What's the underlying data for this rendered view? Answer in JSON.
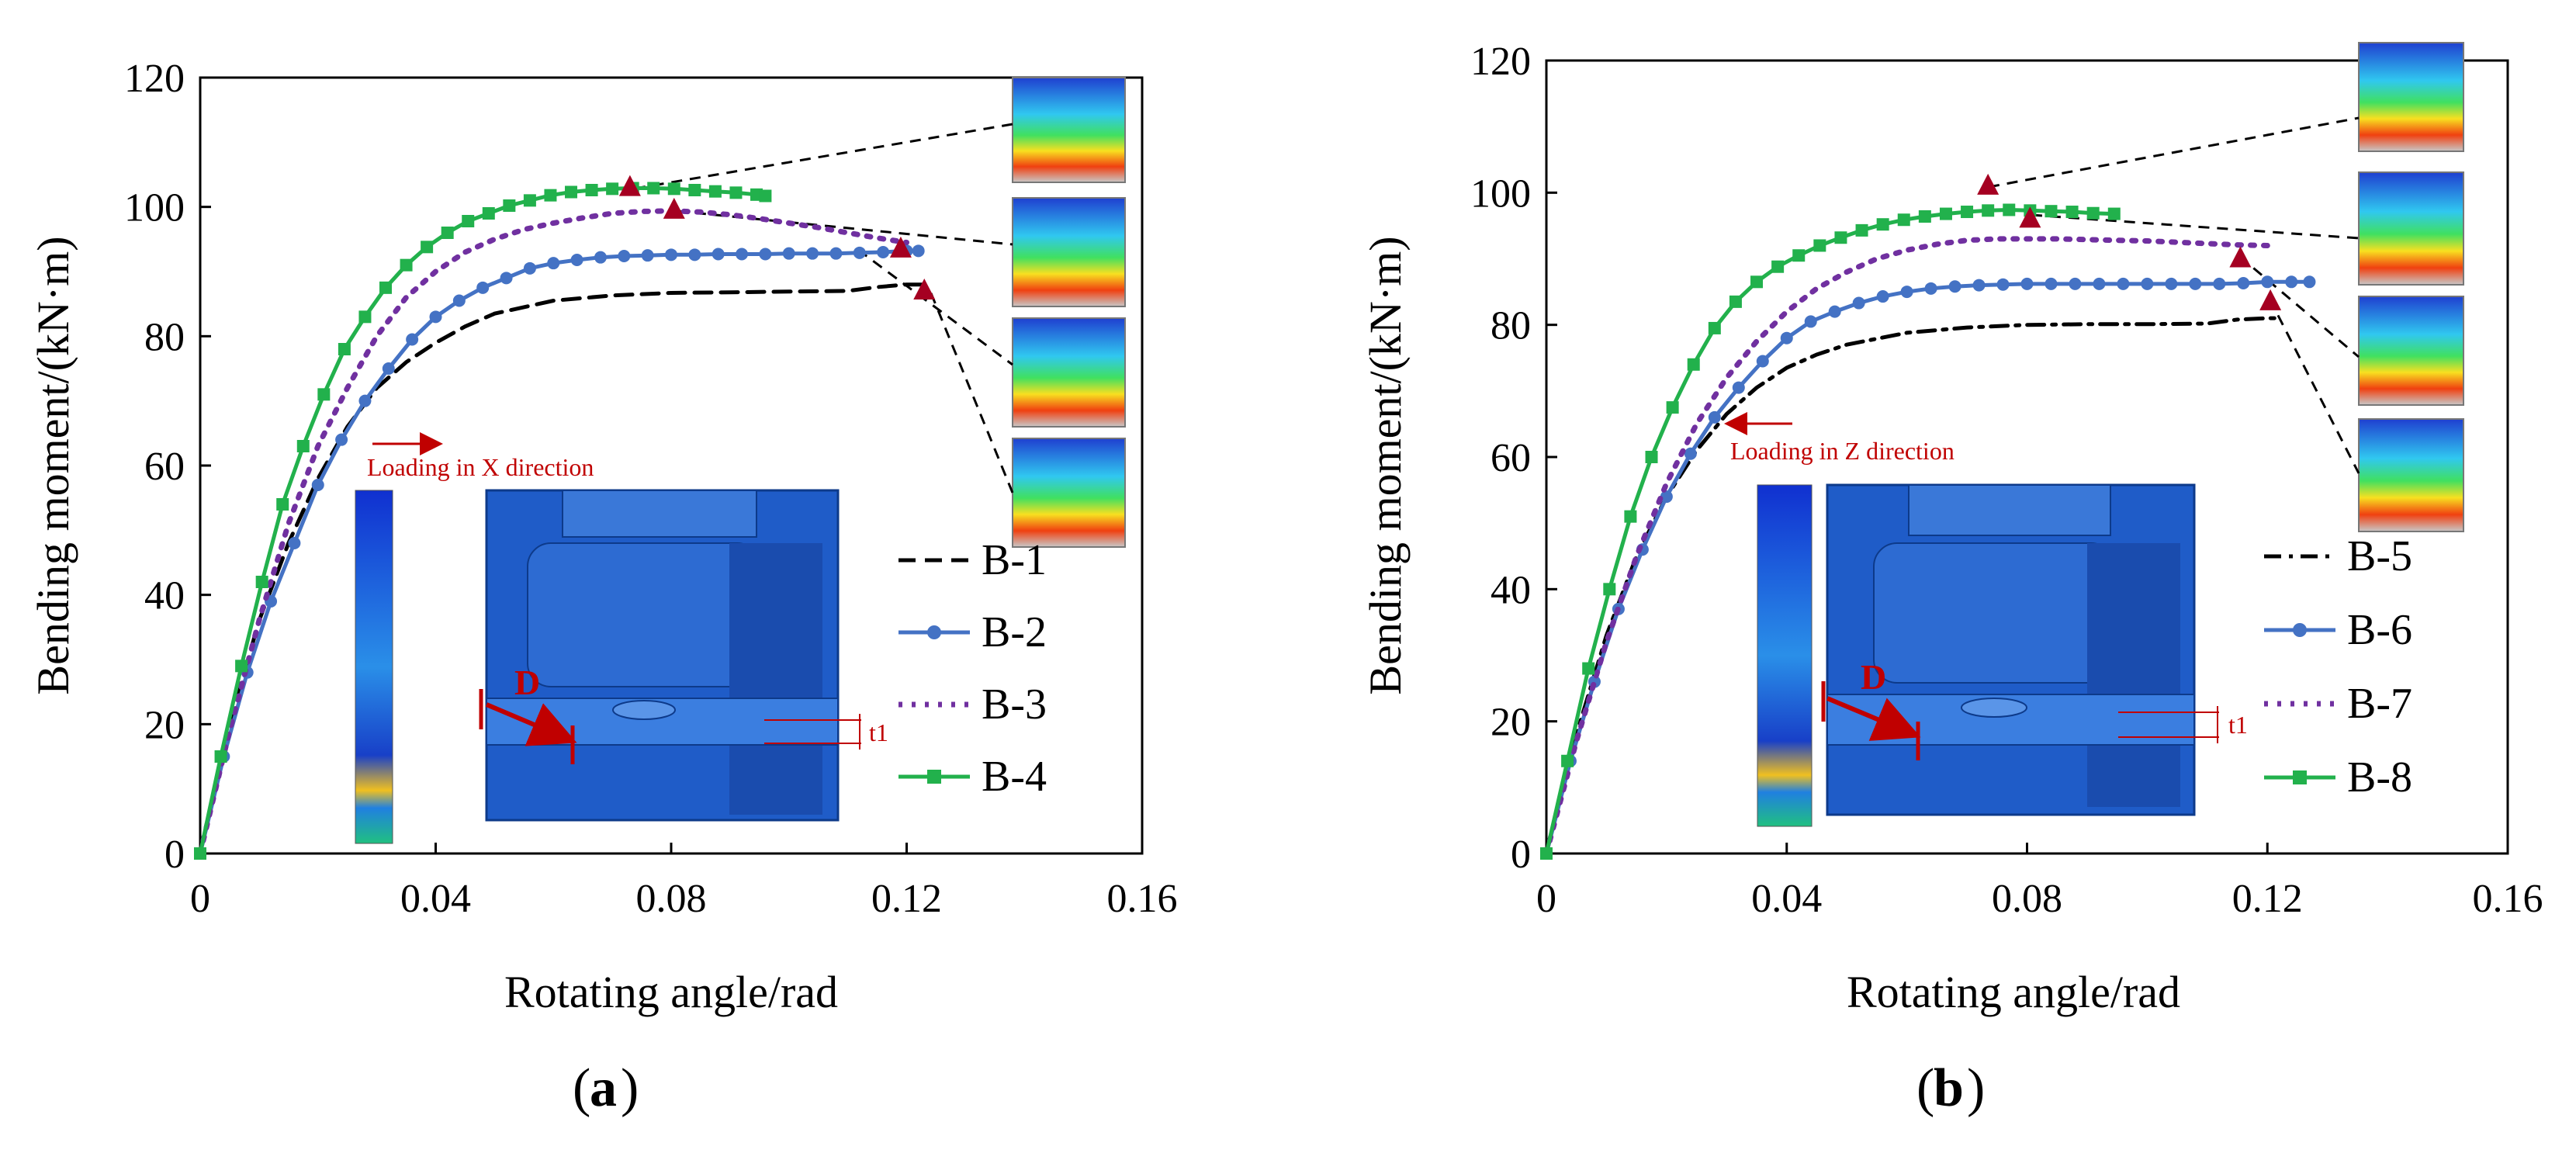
{
  "colors": {
    "axis": "#000000",
    "B-1": "#000000",
    "B-2": "#4472C4",
    "B-3": "#7030A0",
    "B-4": "#22B14C",
    "B-5": "#000000",
    "B-6": "#4472C4",
    "B-7": "#7030A0",
    "B-8": "#22B14C",
    "marker_red": "#A50021",
    "model_blue": "#1F5CC8",
    "annotation_red": "#C00000"
  },
  "chart_data": [
    {
      "id": "a",
      "type": "line",
      "panel_label": "a",
      "xlabel": "Rotating angle/rad",
      "ylabel": "Bending moment/(kN·m)",
      "xlim": [
        0,
        0.16
      ],
      "ylim": [
        0,
        120
      ],
      "xticks": [
        0,
        0.04,
        0.08,
        0.12,
        0.16
      ],
      "xtick_labels": [
        "0",
        "0.04",
        "0.08",
        "0.12",
        "0.16"
      ],
      "yticks": [
        0,
        20,
        40,
        60,
        80,
        100,
        120
      ],
      "ytick_labels": [
        "0",
        "20",
        "40",
        "60",
        "80",
        "100",
        "120"
      ],
      "annotation": "Loading in X direction",
      "dimension_labels": [
        "D",
        "t1"
      ],
      "legend_position": "bottom-right",
      "series": [
        {
          "name": "B-1",
          "style": "dash",
          "marker": "none",
          "x": [
            0,
            0.005,
            0.01,
            0.015,
            0.02,
            0.025,
            0.03,
            0.035,
            0.04,
            0.045,
            0.05,
            0.06,
            0.07,
            0.08,
            0.09,
            0.1,
            0.11,
            0.115,
            0.12,
            0.123
          ],
          "y": [
            0,
            20,
            36,
            48,
            58,
            66,
            72,
            76,
            79,
            81.5,
            83.5,
            85.5,
            86.3,
            86.7,
            86.8,
            86.9,
            87,
            87.6,
            88,
            88
          ]
        },
        {
          "name": "B-2",
          "style": "solid",
          "marker": "circle",
          "x": [
            0,
            0.004,
            0.008,
            0.012,
            0.016,
            0.02,
            0.024,
            0.028,
            0.032,
            0.036,
            0.04,
            0.044,
            0.048,
            0.052,
            0.056,
            0.06,
            0.064,
            0.068,
            0.072,
            0.076,
            0.08,
            0.084,
            0.088,
            0.092,
            0.096,
            0.1,
            0.104,
            0.108,
            0.112,
            0.116,
            0.12,
            0.122
          ],
          "y": [
            0,
            15,
            28,
            39,
            48,
            57,
            64,
            70,
            75,
            79.5,
            83,
            85.5,
            87.5,
            89,
            90.5,
            91.3,
            91.8,
            92.2,
            92.4,
            92.5,
            92.6,
            92.6,
            92.7,
            92.7,
            92.7,
            92.8,
            92.8,
            92.8,
            92.9,
            93,
            93.2,
            93.2
          ]
        },
        {
          "name": "B-3",
          "style": "dot",
          "marker": "none",
          "x": [
            0,
            0.005,
            0.01,
            0.015,
            0.02,
            0.025,
            0.03,
            0.035,
            0.04,
            0.045,
            0.05,
            0.055,
            0.06,
            0.065,
            0.07,
            0.075,
            0.08,
            0.085,
            0.09,
            0.095,
            0.1,
            0.105,
            0.11,
            0.115,
            0.12
          ],
          "y": [
            0,
            19,
            36,
            51,
            63,
            72,
            80,
            86,
            90,
            93,
            95,
            96.5,
            97.5,
            98.3,
            99,
            99.3,
            99.4,
            99.2,
            98.8,
            98.2,
            97.5,
            96.8,
            96,
            95.2,
            94.5
          ]
        },
        {
          "name": "B-4",
          "style": "solid",
          "marker": "square",
          "x": [
            0,
            0.0035,
            0.007,
            0.0105,
            0.014,
            0.0175,
            0.021,
            0.0245,
            0.028,
            0.0315,
            0.035,
            0.0385,
            0.042,
            0.0455,
            0.049,
            0.0525,
            0.056,
            0.0595,
            0.063,
            0.0665,
            0.07,
            0.0735,
            0.077,
            0.0805,
            0.084,
            0.0875,
            0.091,
            0.0945,
            0.096
          ],
          "y": [
            0,
            15,
            29,
            42,
            54,
            63,
            71,
            78,
            83,
            87.5,
            91,
            93.8,
            96,
            97.8,
            99,
            100.2,
            101,
            101.8,
            102.3,
            102.6,
            102.8,
            102.9,
            102.9,
            102.8,
            102.6,
            102.4,
            102.2,
            101.9,
            101.7
          ]
        }
      ],
      "peak_markers": [
        {
          "x": 0.073,
          "y": 103
        },
        {
          "x": 0.0805,
          "y": 99.5
        },
        {
          "x": 0.119,
          "y": 93.5
        },
        {
          "x": 0.123,
          "y": 87
        }
      ]
    },
    {
      "id": "b",
      "type": "line",
      "panel_label": "b",
      "xlabel": "Rotating angle/rad",
      "ylabel": "Bending moment/(kN·m)",
      "xlim": [
        0,
        0.16
      ],
      "ylim": [
        0,
        120
      ],
      "xticks": [
        0,
        0.04,
        0.08,
        0.12,
        0.16
      ],
      "xtick_labels": [
        "0",
        "0.04",
        "0.08",
        "0.12",
        "0.16"
      ],
      "yticks": [
        0,
        20,
        40,
        60,
        80,
        100,
        120
      ],
      "ytick_labels": [
        "0",
        "20",
        "40",
        "60",
        "80",
        "100",
        "120"
      ],
      "annotation": "Loading in Z direction",
      "dimension_labels": [
        "D",
        "t1"
      ],
      "legend_position": "bottom-right",
      "series": [
        {
          "name": "B-5",
          "style": "dashdot",
          "marker": "none",
          "x": [
            0,
            0.005,
            0.01,
            0.015,
            0.02,
            0.025,
            0.03,
            0.035,
            0.04,
            0.045,
            0.05,
            0.06,
            0.07,
            0.08,
            0.09,
            0.1,
            0.11,
            0.115,
            0.12,
            0.122
          ],
          "y": [
            0,
            18,
            33,
            45,
            54,
            61,
            66.5,
            70.5,
            73.5,
            75.5,
            77,
            78.8,
            79.6,
            80,
            80.1,
            80.1,
            80.2,
            80.8,
            81,
            81
          ]
        },
        {
          "name": "B-6",
          "style": "solid",
          "marker": "circle",
          "x": [
            0,
            0.004,
            0.008,
            0.012,
            0.016,
            0.02,
            0.024,
            0.028,
            0.032,
            0.036,
            0.04,
            0.044,
            0.048,
            0.052,
            0.056,
            0.06,
            0.064,
            0.068,
            0.072,
            0.076,
            0.08,
            0.084,
            0.088,
            0.092,
            0.096,
            0.1,
            0.104,
            0.108,
            0.112,
            0.116,
            0.12,
            0.124,
            0.127
          ],
          "y": [
            0,
            14,
            26,
            37,
            46,
            54,
            60.5,
            66,
            70.5,
            74.5,
            78,
            80.5,
            82,
            83.3,
            84.3,
            85,
            85.5,
            85.8,
            86,
            86.1,
            86.2,
            86.2,
            86.2,
            86.2,
            86.2,
            86.2,
            86.2,
            86.2,
            86.2,
            86.3,
            86.5,
            86.5,
            86.5
          ]
        },
        {
          "name": "B-7",
          "style": "dot",
          "marker": "none",
          "x": [
            0,
            0.005,
            0.01,
            0.015,
            0.02,
            0.025,
            0.03,
            0.035,
            0.04,
            0.045,
            0.05,
            0.055,
            0.06,
            0.065,
            0.07,
            0.075,
            0.08,
            0.085,
            0.09,
            0.095,
            0.1,
            0.105,
            0.11,
            0.115,
            0.12
          ],
          "y": [
            0,
            17,
            32,
            45,
            56,
            65,
            72,
            77.5,
            82,
            85.5,
            88,
            90,
            91.3,
            92.2,
            92.8,
            93,
            93,
            93,
            92.9,
            92.8,
            92.7,
            92.5,
            92.3,
            92.1,
            92
          ]
        },
        {
          "name": "B-8",
          "style": "solid",
          "marker": "square",
          "x": [
            0,
            0.0035,
            0.007,
            0.0105,
            0.014,
            0.0175,
            0.021,
            0.0245,
            0.028,
            0.0315,
            0.035,
            0.0385,
            0.042,
            0.0455,
            0.049,
            0.0525,
            0.056,
            0.0595,
            0.063,
            0.0665,
            0.07,
            0.0735,
            0.077,
            0.0805,
            0.084,
            0.0875,
            0.091,
            0.0945
          ],
          "y": [
            0,
            14,
            28,
            40,
            51,
            60,
            67.5,
            74,
            79.5,
            83.5,
            86.5,
            88.8,
            90.5,
            92,
            93.2,
            94.3,
            95.2,
            95.9,
            96.4,
            96.8,
            97.1,
            97.3,
            97.4,
            97.3,
            97.2,
            97.1,
            96.9,
            96.8
          ]
        }
      ],
      "peak_markers": [
        {
          "x": 0.0735,
          "y": 101
        },
        {
          "x": 0.0805,
          "y": 96
        },
        {
          "x": 0.1155,
          "y": 90
        },
        {
          "x": 0.1205,
          "y": 83.5
        }
      ]
    }
  ]
}
